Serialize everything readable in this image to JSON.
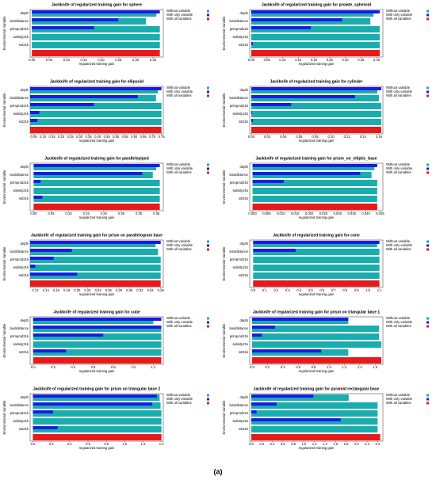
{
  "chart_data": [
    {
      "type": "hbar",
      "title": "Jackknife of regularized training gain for sphere",
      "xlabel": "regularized training gain",
      "ylabel": "Environmental Variable",
      "categories": [
        "depth",
        "landdistance",
        "primprod21k",
        "salinity21k",
        "sst21k",
        null
      ],
      "series": [
        {
          "name": "Without variable",
          "color": "#1aadad",
          "values": [
            0.36,
            0.33,
            0.37,
            0.37,
            0.37,
            null
          ]
        },
        {
          "name": "With only variable",
          "color": "#1a1ae6",
          "values": [
            0.37,
            0.25,
            0.18,
            0,
            0,
            null
          ]
        },
        {
          "name": "With all variables",
          "color": "#e61a1a",
          "values": [
            null,
            null,
            null,
            null,
            null,
            0.37
          ]
        }
      ],
      "xlim": [
        -0.005,
        0.38
      ],
      "xticks": [
        {
          "value": 0,
          "label": "0.00"
        },
        0.05,
        {
          "value": 0.1,
          "label": "0.10"
        },
        0.15,
        {
          "value": 0.2,
          "label": "0.20"
        },
        0.25,
        {
          "value": 0.3,
          "label": "0.30"
        },
        0.35
      ]
    },
    {
      "type": "hbar",
      "title": "Jackknife of regularized training gain for prolate_spheroid",
      "xlabel": "regularized training gain",
      "ylabel": "Environmental Variable",
      "categories": [
        "depth",
        "landdistance",
        "primprod21k",
        "salinity21k",
        "sst21k",
        null
      ],
      "series": [
        {
          "name": "Without variable",
          "color": "#1aadad",
          "values": [
            0.39,
            0.38,
            0.41,
            0.41,
            0.41,
            null
          ]
        },
        {
          "name": "With only variable",
          "color": "#1a1ae6",
          "values": [
            0.41,
            0.29,
            0.19,
            0,
            0.005,
            null
          ]
        },
        {
          "name": "With all variables",
          "color": "#e61a1a",
          "values": [
            null,
            null,
            null,
            null,
            null,
            0.41
          ]
        }
      ],
      "xlim": [
        -0.005,
        0.42
      ],
      "xticks": [
        {
          "value": 0,
          "label": "0.00"
        },
        0.05,
        {
          "value": 0.1,
          "label": "0.10"
        },
        0.15,
        {
          "value": 0.2,
          "label": "0.20"
        },
        0.25,
        {
          "value": 0.3,
          "label": "0.30"
        },
        0.35,
        {
          "value": 0.4,
          "label": "0.40"
        }
      ]
    },
    {
      "type": "hbar",
      "title": "Jackknife of regularized training gain for ellipsoid",
      "xlabel": "regularized training gain",
      "ylabel": "Environmental Variable",
      "categories": [
        "depth",
        "landdistance",
        "primprod21k",
        "salinity21k",
        "sst21k",
        null
      ],
      "series": [
        {
          "name": "Without variable",
          "color": "#1aadad",
          "values": [
            0.73,
            0.72,
            0.75,
            0.75,
            0.75,
            null
          ]
        },
        {
          "name": "With only variable",
          "color": "#1a1ae6",
          "values": [
            0.75,
            0.62,
            0.38,
            0.08,
            0.07,
            null
          ]
        },
        {
          "name": "With all variables",
          "color": "#e61a1a",
          "values": [
            null,
            null,
            null,
            null,
            null,
            0.75
          ]
        }
      ],
      "xlim": [
        0.03,
        0.76
      ],
      "xticks": [
        0.05,
        {
          "value": 0.1,
          "label": "0.10"
        },
        0.15,
        {
          "value": 0.2,
          "label": "0.20"
        },
        0.25,
        {
          "value": 0.3,
          "label": "0.30"
        },
        0.35,
        {
          "value": 0.4,
          "label": "0.40"
        },
        0.45,
        {
          "value": 0.5,
          "label": "0.50"
        },
        0.55,
        {
          "value": 0.6,
          "label": "0.60"
        },
        0.65,
        {
          "value": 0.7,
          "label": "0.70"
        },
        0.75
      ]
    },
    {
      "type": "hbar",
      "title": "Jackknife of regularized training gain for cylinder",
      "xlabel": "regularized training gain",
      "ylabel": "Environmental Variable",
      "categories": [
        "depth",
        "landdistance",
        "primprod21k",
        "salinity21k",
        "sst21k",
        null
      ],
      "series": [
        {
          "name": "Without variable",
          "color": "#1aadad",
          "values": [
            0.158,
            0.16,
            0.163,
            0.163,
            0.163,
            null
          ]
        },
        {
          "name": "With only variable",
          "color": "#1a1ae6",
          "values": [
            0.163,
            0.13,
            0.05,
            0.001,
            0.002,
            null
          ]
        },
        {
          "name": "With all variables",
          "color": "#e61a1a",
          "values": [
            null,
            null,
            null,
            null,
            null,
            0.163
          ]
        }
      ],
      "xlim": [
        -0.002,
        0.165
      ],
      "xticks": [
        {
          "value": 0,
          "label": "0.00"
        },
        0.02,
        0.04,
        0.06,
        0.08,
        {
          "value": 0.1,
          "label": "0.10"
        },
        0.12,
        0.14,
        0.16
      ]
    },
    {
      "type": "hbar",
      "title": "Jackknife of regularized training gain for parallelepiped",
      "xlabel": "regularized training gain",
      "ylabel": "Environmental Variable",
      "categories": [
        "depth",
        "landdistance",
        "primprod21k",
        "salinity21k",
        "sst21k",
        null
      ],
      "series": [
        {
          "name": "Without variable",
          "color": "#1aadad",
          "values": [
            0.35,
            0.34,
            0.36,
            0.36,
            0.36,
            null
          ]
        },
        {
          "name": "With only variable",
          "color": "#1a1ae6",
          "values": [
            0.36,
            0.31,
            0.02,
            0,
            0.025,
            null
          ]
        },
        {
          "name": "With all variables",
          "color": "#e61a1a",
          "values": [
            null,
            null,
            null,
            null,
            null,
            0.36
          ]
        }
      ],
      "xlim": [
        -0.01,
        0.37
      ],
      "xticks": [
        {
          "value": 0,
          "label": "0.00"
        },
        0.05,
        {
          "value": 0.1,
          "label": "0.10"
        },
        0.15,
        {
          "value": 0.2,
          "label": "0.20"
        },
        0.25,
        {
          "value": 0.3,
          "label": "0.30"
        },
        0.35
      ]
    },
    {
      "type": "hbar",
      "title": "Jackknife of regularized training gain for prism_on_elliptic_base",
      "xlabel": "regularized training gain",
      "ylabel": "Environmental Variable",
      "categories": [
        "depth",
        "landdistance",
        "primprod21k",
        "salinity21k",
        "sst21k",
        null
      ],
      "series": [
        {
          "name": "Without variable",
          "color": "#1aadad",
          "values": [
            0.043,
            0.042,
            0.044,
            0.044,
            0.044,
            null
          ]
        },
        {
          "name": "With only variable",
          "color": "#1a1ae6",
          "values": [
            0.044,
            0.038,
            0.011,
            0,
            0,
            null
          ]
        },
        {
          "name": "With all variables",
          "color": "#e61a1a",
          "values": [
            null,
            null,
            null,
            null,
            null,
            0.044
          ]
        }
      ],
      "xlim": [
        -0.001,
        0.046
      ],
      "xticks": [
        {
          "value": 0,
          "label": "0.000"
        },
        0.005,
        {
          "value": 0.01,
          "label": "0.010"
        },
        0.015,
        {
          "value": 0.02,
          "label": "0.020"
        },
        0.025,
        {
          "value": 0.03,
          "label": "0.030"
        },
        0.035,
        {
          "value": 0.04,
          "label": "0.040"
        },
        0.045
      ]
    },
    {
      "type": "hbar",
      "title": "Jackknife of regularized training gain for prism  on  parallelogram  base",
      "xlabel": "regularized training gain",
      "ylabel": "Environmental Variable",
      "categories": [
        "depth",
        "landdistance",
        "primprod21k",
        "salinity21k",
        "sst21k",
        null
      ],
      "series": [
        {
          "name": "Without variable",
          "color": "#1aadad",
          "values": [
            0.35,
            0.355,
            0.36,
            0.36,
            0.36,
            null
          ]
        },
        {
          "name": "With only variable",
          "color": "#1a1ae6",
          "values": [
            0.36,
            0.19,
            0.155,
            0.12,
            0.2,
            null
          ]
        },
        {
          "name": "With all variables",
          "color": "#e61a1a",
          "values": [
            null,
            null,
            null,
            null,
            null,
            0.36
          ]
        }
      ],
      "xlim": [
        0.11,
        0.365
      ],
      "xticks": [
        0.12,
        0.14,
        0.16,
        0.18,
        {
          "value": 0.2,
          "label": "0.20"
        },
        0.22,
        0.24,
        0.26,
        0.28,
        {
          "value": 0.3,
          "label": "0.30"
        },
        0.32,
        0.34,
        0.36
      ]
    },
    {
      "type": "hbar",
      "title": "Jackknife of regularized training gain for cone",
      "xlabel": "regularized training gain",
      "ylabel": "Environmental Variable",
      "categories": [
        "depth",
        "landdistance",
        "primprod21k",
        "salinity21k",
        "sst21k",
        null
      ],
      "series": [
        {
          "name": "Without variable",
          "color": "#1aadad",
          "values": [
            1.08,
            1.1,
            1.1,
            1.1,
            1.1,
            null
          ]
        },
        {
          "name": "With only variable",
          "color": "#1a1ae6",
          "values": [
            1.1,
            0.37,
            0,
            0,
            0,
            null
          ]
        },
        {
          "name": "With all variables",
          "color": "#e61a1a",
          "values": [
            null,
            null,
            null,
            null,
            null,
            1.1
          ]
        }
      ],
      "xlim": [
        -0.03,
        1.13
      ],
      "xticks": [
        {
          "value": 0,
          "label": "0.0"
        },
        0.1,
        0.2,
        0.3,
        0.4,
        0.5,
        0.6,
        0.7,
        0.8,
        0.9,
        {
          "value": 1,
          "label": "1.0"
        },
        1.1
      ]
    },
    {
      "type": "hbar",
      "title": "Jackknife of regularized training gain for cube",
      "xlabel": "regularized training gain",
      "ylabel": "Environmental Variable",
      "categories": [
        "depth",
        "landdistance",
        "primprod21k",
        "salinity21k",
        "sst21k",
        null
      ],
      "series": [
        {
          "name": "Without variable",
          "color": "#1aadad",
          "values": [
            1.2,
            1.28,
            1.28,
            1.28,
            1.28,
            null
          ]
        },
        {
          "name": "With only variable",
          "color": "#1a1ae6",
          "values": [
            1.28,
            1.28,
            0.7,
            0,
            0.33,
            null
          ]
        },
        {
          "name": "With all variables",
          "color": "#e61a1a",
          "values": [
            null,
            null,
            null,
            null,
            null,
            1.28
          ]
        }
      ],
      "xlim": [
        -0.03,
        1.3
      ],
      "xticks": [
        {
          "value": 0,
          "label": "0.0"
        },
        0.2,
        0.4,
        0.6,
        0.8,
        {
          "value": 1,
          "label": "1.0"
        },
        1.2
      ]
    },
    {
      "type": "hbar",
      "title": "Jackknife of regularized training gain for prism  on  triangular  base  1",
      "xlabel": "regularized training gain",
      "ylabel": "Environmental Variable",
      "categories": [
        "depth",
        "landdistance",
        "primprod21k",
        "salinity21k",
        "sst21k",
        null
      ],
      "series": [
        {
          "name": "Without variable",
          "color": "#1aadad",
          "values": [
            1.25,
            1.65,
            1.65,
            1.68,
            1.25,
            null
          ]
        },
        {
          "name": "With only variable",
          "color": "#1a1ae6",
          "values": [
            1.25,
            0.3,
            0.13,
            0,
            0.9,
            null
          ]
        },
        {
          "name": "With all variables",
          "color": "#e61a1a",
          "values": [
            null,
            null,
            null,
            null,
            null,
            1.68
          ]
        }
      ],
      "xlim": [
        -0.03,
        1.7
      ],
      "xticks": [
        {
          "value": 0,
          "label": "0.0"
        },
        0.2,
        0.4,
        0.6,
        0.8,
        {
          "value": 1,
          "label": "1.0"
        },
        1.2,
        1.4,
        1.6
      ]
    },
    {
      "type": "hbar",
      "title": "Jackknife of regularized training gain for prism  on  triangular  base  2",
      "xlabel": "regularized training gain",
      "ylabel": "Environmental Variable",
      "categories": [
        "depth",
        "landdistance",
        "primprod21k",
        "salinity21k",
        "sst21k",
        null
      ],
      "series": [
        {
          "name": "Without variable",
          "color": "#1aadad",
          "values": [
            1.38,
            1.39,
            1.4,
            1.4,
            1.4,
            null
          ]
        },
        {
          "name": "With only variable",
          "color": "#1a1ae6",
          "values": [
            1.35,
            1.3,
            0.22,
            0,
            0.27,
            null
          ]
        },
        {
          "name": "With all variables",
          "color": "#e61a1a",
          "values": [
            null,
            null,
            null,
            null,
            null,
            1.4
          ]
        }
      ],
      "xlim": [
        -0.03,
        1.42
      ],
      "xticks": [
        {
          "value": 0,
          "label": "0.0"
        },
        0.2,
        0.4,
        0.6,
        0.8,
        {
          "value": 1,
          "label": "1.0"
        },
        1.2,
        1.4
      ]
    },
    {
      "type": "hbar",
      "title": "Jackknife of regularized training gain for pyramid  rectangular  base",
      "xlabel": "regularized training gain",
      "ylabel": "Environmental Variable",
      "categories": [
        "depth",
        "landdistance",
        "primprod21k",
        "salinity21k",
        "sst21k",
        null
      ],
      "series": [
        {
          "name": "Without variable",
          "color": "#1aadad",
          "values": [
            1.85,
            2.4,
            2.4,
            2.4,
            2.4,
            null
          ]
        },
        {
          "name": "With only variable",
          "color": "#1a1ae6",
          "values": [
            1.18,
            0.48,
            0.1,
            1.7,
            0,
            null
          ]
        },
        {
          "name": "With all variables",
          "color": "#e61a1a",
          "values": [
            null,
            null,
            null,
            null,
            null,
            2.45
          ]
        }
      ],
      "xlim": [
        -0.03,
        2.5
      ],
      "xticks": [
        {
          "value": 0,
          "label": "0.0"
        },
        0.2,
        0.4,
        0.6,
        0.8,
        {
          "value": 1,
          "label": "1.0"
        },
        1.2,
        1.4,
        1.6,
        1.8,
        {
          "value": 2,
          "label": "2.0"
        },
        2.2,
        2.4
      ]
    }
  ],
  "caption": "(a)"
}
